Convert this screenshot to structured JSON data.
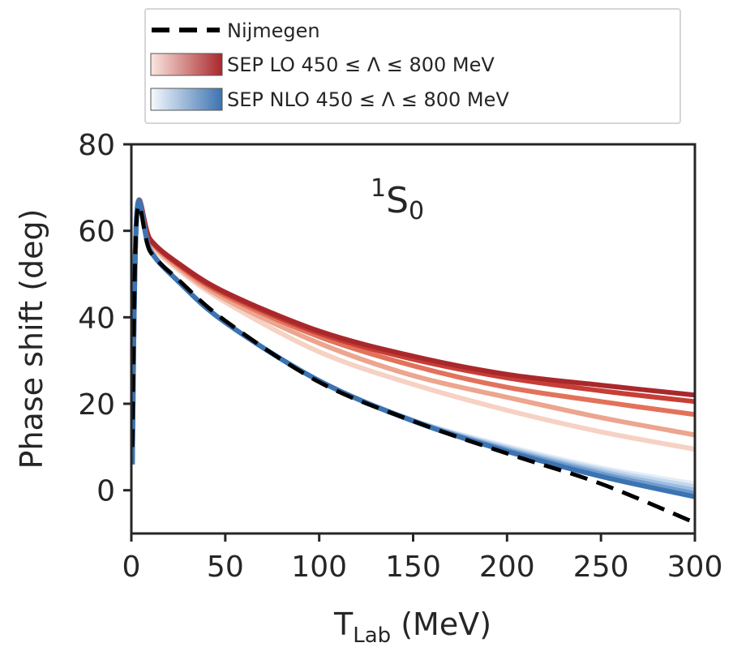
{
  "chart_data": {
    "type": "line",
    "annotation": {
      "main": "S",
      "superscript": "1",
      "subscript": "0"
    },
    "xlabel": {
      "main": "T",
      "subscript": "Lab",
      "suffix": " (MeV)"
    },
    "ylabel": "Phase shift (deg)",
    "xlim": [
      0,
      300
    ],
    "ylim": [
      -10,
      80
    ],
    "xticks": [
      0,
      50,
      100,
      150,
      200,
      250,
      300
    ],
    "yticks": [
      0,
      20,
      40,
      60,
      80
    ],
    "legend": {
      "position": "above plot",
      "entries": [
        {
          "label": "Nijmegen",
          "style": "dashed",
          "color": "#000000"
        },
        {
          "label": "SEP LO 450 ≤ Λ ≤ 800 MeV",
          "style": "gradient",
          "colors": [
            "#fbe6df",
            "#a9282c"
          ]
        },
        {
          "label": "SEP NLO 450 ≤ Λ ≤ 800 MeV",
          "style": "gradient",
          "colors": [
            "#f5f9fd",
            "#3c73b1"
          ]
        }
      ]
    },
    "series": [
      {
        "name": "Nijmegen",
        "color": "#000000",
        "style": "dashed",
        "x": [
          0.5,
          3,
          10,
          25,
          50,
          100,
          150,
          200,
          250,
          300
        ],
        "y": [
          10,
          63.6,
          55.2,
          48.7,
          39.2,
          25.0,
          16.0,
          8.5,
          1.5,
          -7.5
        ]
      },
      {
        "name": "SEP LO Λ=450 MeV",
        "color": "#f6d1c4",
        "style": "solid",
        "x": [
          0.5,
          3,
          10,
          25,
          50,
          100,
          150,
          200,
          250,
          300
        ],
        "y": [
          10,
          64.5,
          57,
          51,
          43.5,
          32,
          24.5,
          18.5,
          13.5,
          9.5
        ]
      },
      {
        "name": "SEP LO Λ=500 MeV",
        "color": "#eca58e",
        "style": "solid",
        "x": [
          0.5,
          3,
          10,
          25,
          50,
          100,
          150,
          200,
          250,
          300
        ],
        "y": [
          10,
          64.5,
          57.5,
          51.5,
          44.2,
          34,
          26.5,
          21.5,
          16.8,
          12.8
        ]
      },
      {
        "name": "SEP LO Λ=600 MeV",
        "color": "#e2725b",
        "style": "solid",
        "x": [
          0.5,
          3,
          10,
          25,
          50,
          100,
          150,
          200,
          250,
          300
        ],
        "y": [
          10,
          64.5,
          57.8,
          52,
          45,
          35.5,
          28.8,
          23.8,
          20.5,
          17.5
        ]
      },
      {
        "name": "SEP LO Λ=700 MeV",
        "color": "#c73e36",
        "style": "solid",
        "x": [
          0.5,
          3,
          10,
          25,
          50,
          100,
          150,
          200,
          250,
          300
        ],
        "y": [
          10,
          64.5,
          58,
          52.3,
          45.5,
          36.3,
          30.3,
          26,
          23,
          20.5
        ]
      },
      {
        "name": "SEP LO Λ=800 MeV",
        "color": "#a9282c",
        "style": "solid",
        "x": [
          0.5,
          3,
          10,
          25,
          50,
          100,
          150,
          200,
          250,
          300
        ],
        "y": [
          10,
          64.5,
          58,
          52.5,
          45.8,
          36.8,
          31,
          26.8,
          24.3,
          22
        ]
      },
      {
        "name": "SEP NLO Λ=450 MeV",
        "color": "#e3edf8",
        "style": "solid",
        "x": [
          0.5,
          3,
          10,
          25,
          50,
          100,
          150,
          200,
          250,
          300
        ],
        "y": [
          6,
          64.5,
          55.5,
          48.3,
          38.8,
          25.3,
          16.2,
          10.2,
          5.2,
          1.5
        ]
      },
      {
        "name": "SEP NLO Λ=500 MeV",
        "color": "#c3d8ee",
        "style": "solid",
        "x": [
          0.5,
          3,
          10,
          25,
          50,
          100,
          150,
          200,
          250,
          300
        ],
        "y": [
          6,
          64.5,
          55.5,
          48.3,
          38.8,
          25.3,
          16.2,
          9.9,
          4.8,
          0.8
        ]
      },
      {
        "name": "SEP NLO Λ=600 MeV",
        "color": "#9dbde1",
        "style": "solid",
        "x": [
          0.5,
          3,
          10,
          25,
          50,
          100,
          150,
          200,
          250,
          300
        ],
        "y": [
          6,
          64.5,
          55.5,
          48.3,
          38.8,
          25.3,
          16.1,
          9.6,
          4.3,
          0
        ]
      },
      {
        "name": "SEP NLO Λ=700 MeV",
        "color": "#6f9bcf",
        "style": "solid",
        "x": [
          0.5,
          3,
          10,
          25,
          50,
          100,
          150,
          200,
          250,
          300
        ],
        "y": [
          6,
          64.5,
          55.5,
          48.3,
          38.8,
          25.3,
          16,
          9.3,
          3.8,
          -0.8
        ]
      },
      {
        "name": "SEP NLO Λ=800 MeV",
        "color": "#3c73b1",
        "style": "solid",
        "x": [
          0.5,
          3,
          10,
          25,
          50,
          100,
          150,
          200,
          250,
          300
        ],
        "y": [
          6,
          64.5,
          55.5,
          48.3,
          38.8,
          25.3,
          16,
          9,
          3.2,
          -1.5
        ]
      }
    ]
  }
}
